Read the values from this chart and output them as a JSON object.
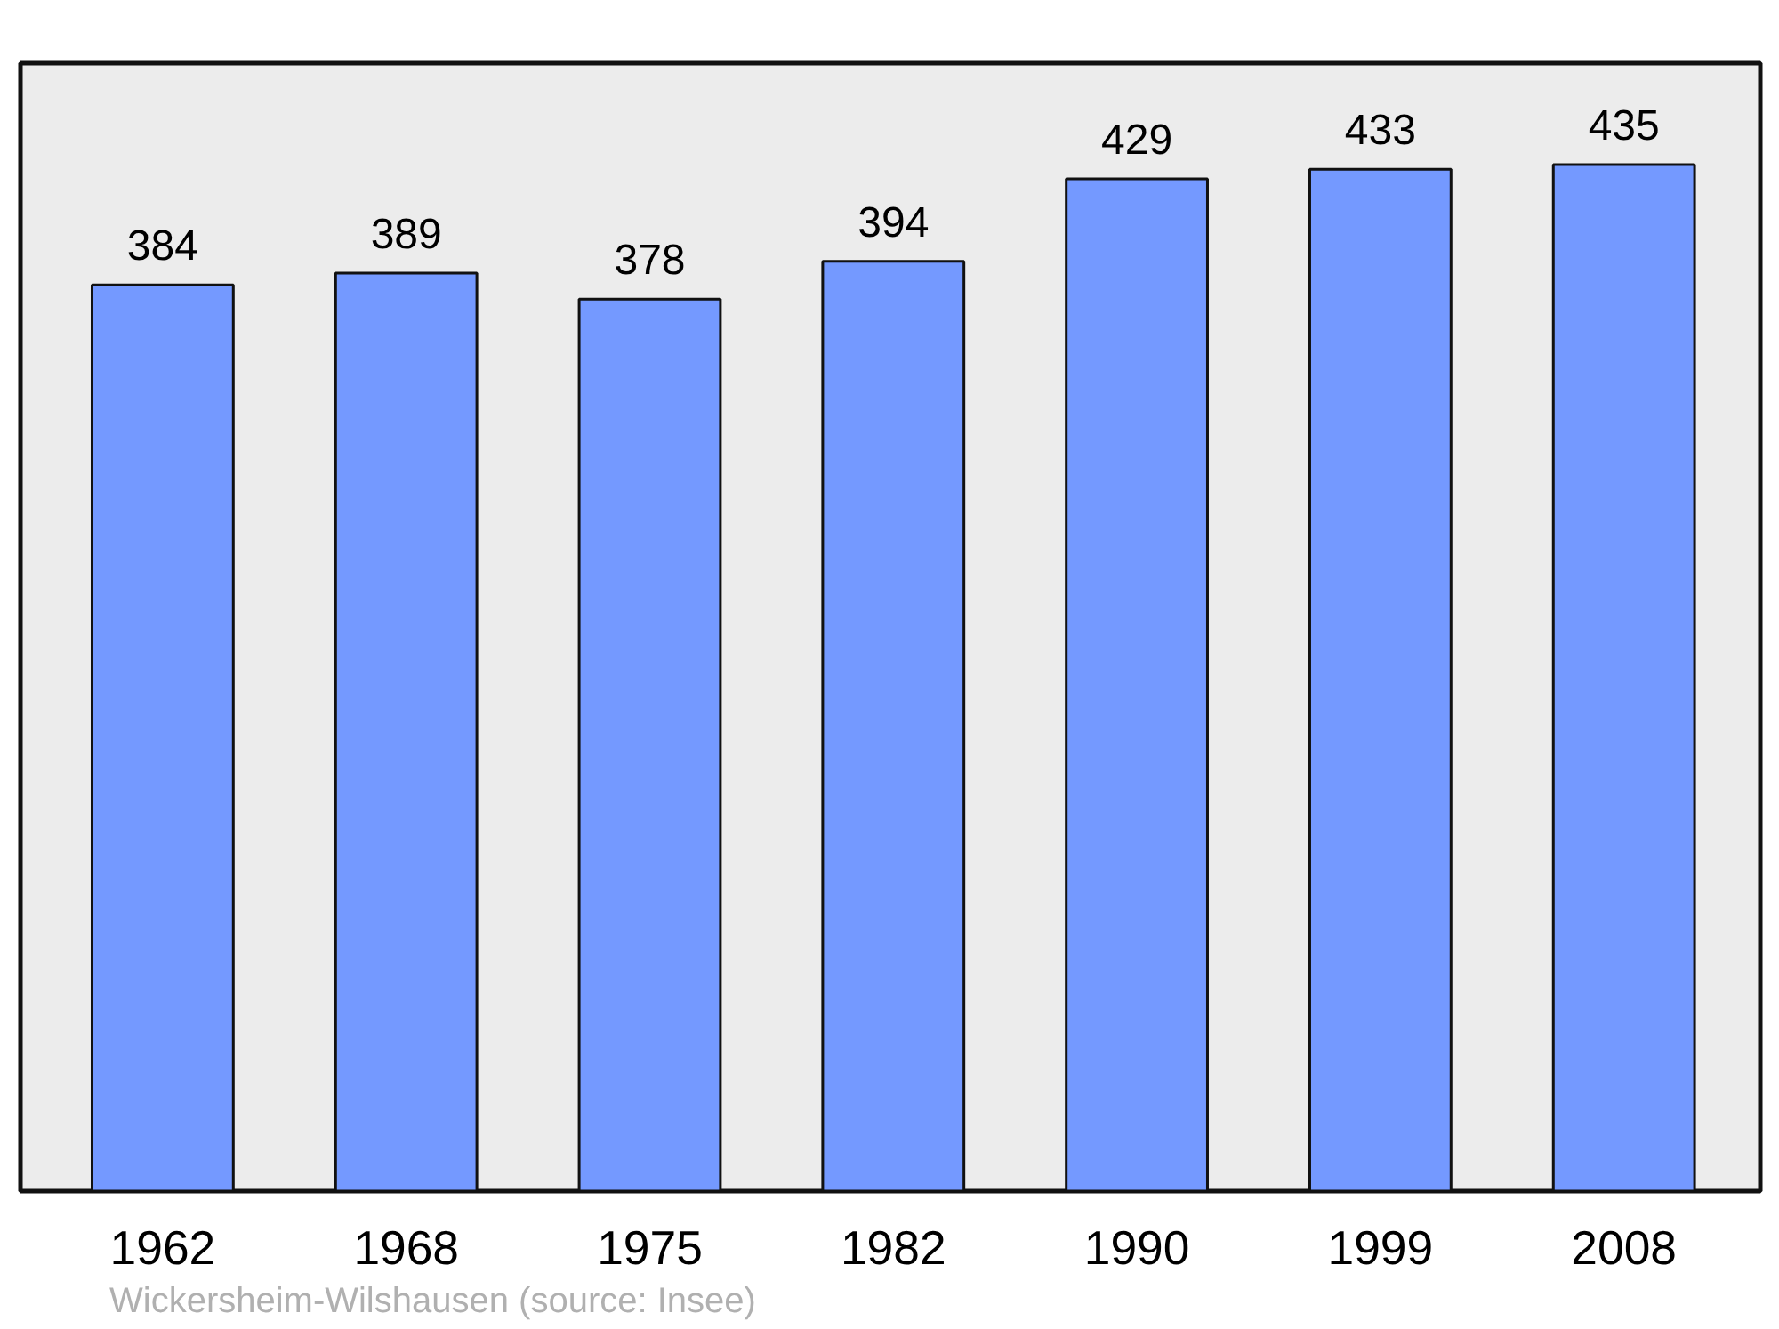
{
  "chart_data": {
    "type": "bar",
    "categories": [
      "1962",
      "1968",
      "1975",
      "1982",
      "1990",
      "1999",
      "2008"
    ],
    "values": [
      384,
      389,
      378,
      394,
      429,
      433,
      435
    ],
    "color": "#7499ff",
    "data_labels": true,
    "ylim": [
      0,
      478
    ],
    "tick_labels": "x",
    "annotations": [
      "Wickersheim-Wilshausen    (source: Insee)"
    ]
  }
}
